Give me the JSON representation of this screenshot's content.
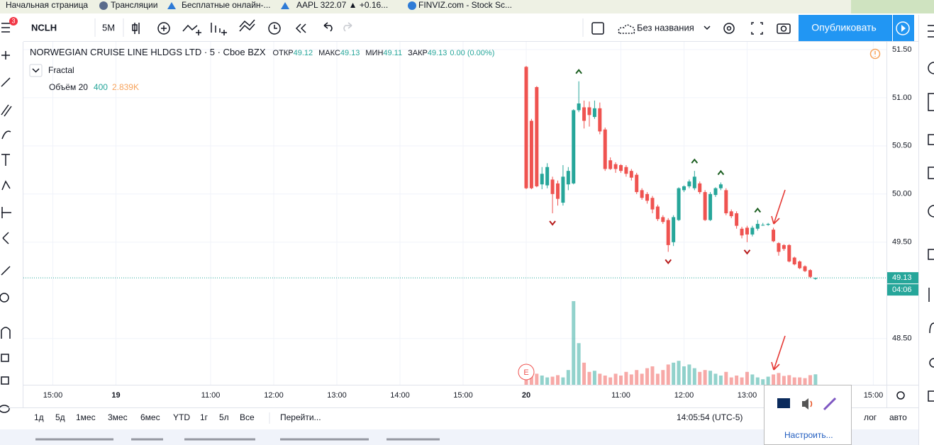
{
  "browser_bookmarks": [
    "Начальная страница",
    "Трансляции",
    "Бесплатные онлайн-...",
    "AAPL 322.07 ▲ +0.16...",
    "FINVIZ.com - Stock Sc..."
  ],
  "toolbar": {
    "symbol": "NCLH",
    "interval": "5M",
    "layout_name": "Без названия",
    "publish": "Опубликовать",
    "notification_count": 3
  },
  "chart_data": {
    "type": "candlestick",
    "title": "NORWEGIAN CRUISE LINE HLDGS LTD · 5 · Cboe BZX",
    "ohlc_labels": {
      "open": "ОТКР",
      "high": "МАКС",
      "low": "МИН",
      "close": "ЗАКР"
    },
    "change": "0.00 (0.00%)",
    "indicator": "Fractal",
    "volume_legend": {
      "name": "Объём 20",
      "ma": "400",
      "value": "2.839K"
    },
    "up_color": "#26a69a",
    "down_color": "#ef5350",
    "open": [
      51.32,
      50.76,
      51.11,
      50.1,
      50.09,
      50.15,
      50.11,
      49.91,
      50.1,
      50.11,
      50.87,
      50.9,
      50.9,
      50.8,
      50.89,
      50.67,
      50.35,
      50.31,
      50.3,
      50.28,
      50.24,
      50.2,
      50.04,
      50.0,
      49.96,
      49.87,
      49.76,
      49.73,
      49.5,
      49.73,
      50.04,
      50.08,
      50.06,
      50.11,
      50.02,
      49.73,
      49.99,
      50.06,
      50.04,
      49.82,
      49.8,
      49.64,
      49.65,
      49.58,
      49.64,
      49.68,
      49.68,
      49.63,
      49.49,
      49.47,
      49.47,
      49.34,
      49.3,
      49.25,
      49.21,
      49.12
    ],
    "high": [
      51.33,
      50.78,
      51.12,
      50.28,
      50.32,
      50.18,
      50.14,
      50.3,
      50.28,
      50.88,
      51.17,
      50.97,
      50.96,
      50.97,
      50.95,
      50.69,
      50.38,
      50.33,
      50.31,
      50.3,
      50.26,
      50.22,
      50.06,
      50.02,
      49.98,
      49.89,
      49.78,
      49.75,
      49.78,
      50.07,
      50.09,
      50.15,
      50.24,
      50.13,
      50.04,
      50.02,
      50.07,
      50.12,
      50.06,
      49.84,
      49.82,
      49.66,
      49.67,
      49.67,
      49.73,
      49.7,
      49.7,
      49.65,
      49.5,
      49.48,
      49.48,
      49.35,
      49.31,
      49.26,
      49.22,
      49.13
    ],
    "low": [
      50.05,
      50.05,
      50.07,
      50.05,
      50.06,
      49.8,
      49.88,
      49.88,
      50.04,
      50.1,
      50.85,
      50.68,
      50.7,
      50.78,
      50.62,
      50.24,
      50.25,
      50.22,
      50.22,
      50.18,
      50.14,
      50.0,
      49.94,
      49.9,
      49.8,
      49.72,
      49.69,
      49.4,
      49.46,
      49.72,
      50.02,
      50.06,
      50.04,
      50.0,
      49.72,
      49.72,
      49.97,
      50.04,
      49.78,
      49.75,
      49.64,
      49.54,
      49.5,
      49.56,
      49.62,
      49.67,
      49.67,
      49.5,
      49.36,
      49.41,
      49.29,
      49.26,
      49.22,
      49.19,
      49.13,
      49.11
    ],
    "close": [
      50.06,
      50.06,
      50.08,
      50.21,
      50.28,
      50.0,
      49.95,
      50.18,
      50.24,
      50.87,
      50.94,
      50.76,
      50.82,
      50.89,
      50.65,
      50.26,
      50.26,
      50.26,
      50.24,
      50.21,
      50.17,
      50.02,
      49.96,
      49.93,
      49.84,
      49.74,
      49.71,
      49.47,
      49.76,
      50.06,
      50.08,
      50.13,
      50.18,
      50.02,
      49.73,
      50.0,
      50.06,
      50.1,
      49.8,
      49.77,
      49.67,
      49.57,
      49.58,
      49.65,
      49.69,
      49.68,
      49.69,
      49.51,
      49.4,
      49.43,
      49.3,
      49.27,
      49.23,
      49.2,
      49.14,
      49.13
    ],
    "volume": [
      4300,
      3500,
      3000,
      2500,
      2000,
      2200,
      2600,
      2000,
      4000,
      22700,
      11300,
      6000,
      3500,
      3800,
      3000,
      2500,
      2000,
      3000,
      2500,
      3500,
      2800,
      4000,
      3000,
      4500,
      5000,
      3000,
      4000,
      5500,
      6000,
      6500,
      5000,
      5500,
      4500,
      3500,
      4000,
      3800,
      3000,
      2500,
      3500,
      2000,
      2500,
      2000,
      3500,
      2800,
      2000,
      1500,
      2200,
      2800,
      3200,
      2400,
      2600,
      2000,
      2000,
      1800,
      2600,
      2839
    ],
    "ylim": [
      48.02,
      51.58
    ],
    "yticks": [
      {
        "value": 48.5,
        "label": "48.50"
      },
      {
        "value": 49.5,
        "label": "49.50"
      },
      {
        "value": 50,
        "label": "50.00"
      },
      {
        "value": 50.5,
        "label": "50.50"
      },
      {
        "value": 51,
        "label": "51.00"
      },
      {
        "value": 51.5,
        "label": "51.50"
      }
    ],
    "xlim": [
      -95.6,
      68.5
    ],
    "xticks": [
      {
        "value": -90,
        "label": "15:00"
      },
      {
        "value": -78,
        "label": "19"
      },
      {
        "value": -60,
        "label": "11:00"
      },
      {
        "value": -48,
        "label": "12:00"
      },
      {
        "value": -36,
        "label": "13:00"
      },
      {
        "value": -24,
        "label": "14:00"
      },
      {
        "value": -12,
        "label": "15:00"
      },
      {
        "value": 0,
        "label": "20"
      },
      {
        "value": 18,
        "label": "11:00"
      },
      {
        "value": 30,
        "label": "12:00"
      },
      {
        "value": 42,
        "label": "13:00"
      },
      {
        "value": 66,
        "label": "15:00"
      }
    ],
    "volume_ylim": [
      0,
      25000
    ],
    "last_price": 49.13,
    "countdown": "04:06",
    "event": "E",
    "grid": true
  },
  "bottom_bar": {
    "ranges": [
      "1д",
      "5д",
      "1мес",
      "3мес",
      "6мес",
      "YTD",
      "1г",
      "5л",
      "Все"
    ],
    "goto": "Перейти...",
    "clock": "14:05:54 (UTC-5)",
    "log": "лог",
    "auto": "авто"
  },
  "tray_popup": {
    "customize": "Настроить..."
  }
}
